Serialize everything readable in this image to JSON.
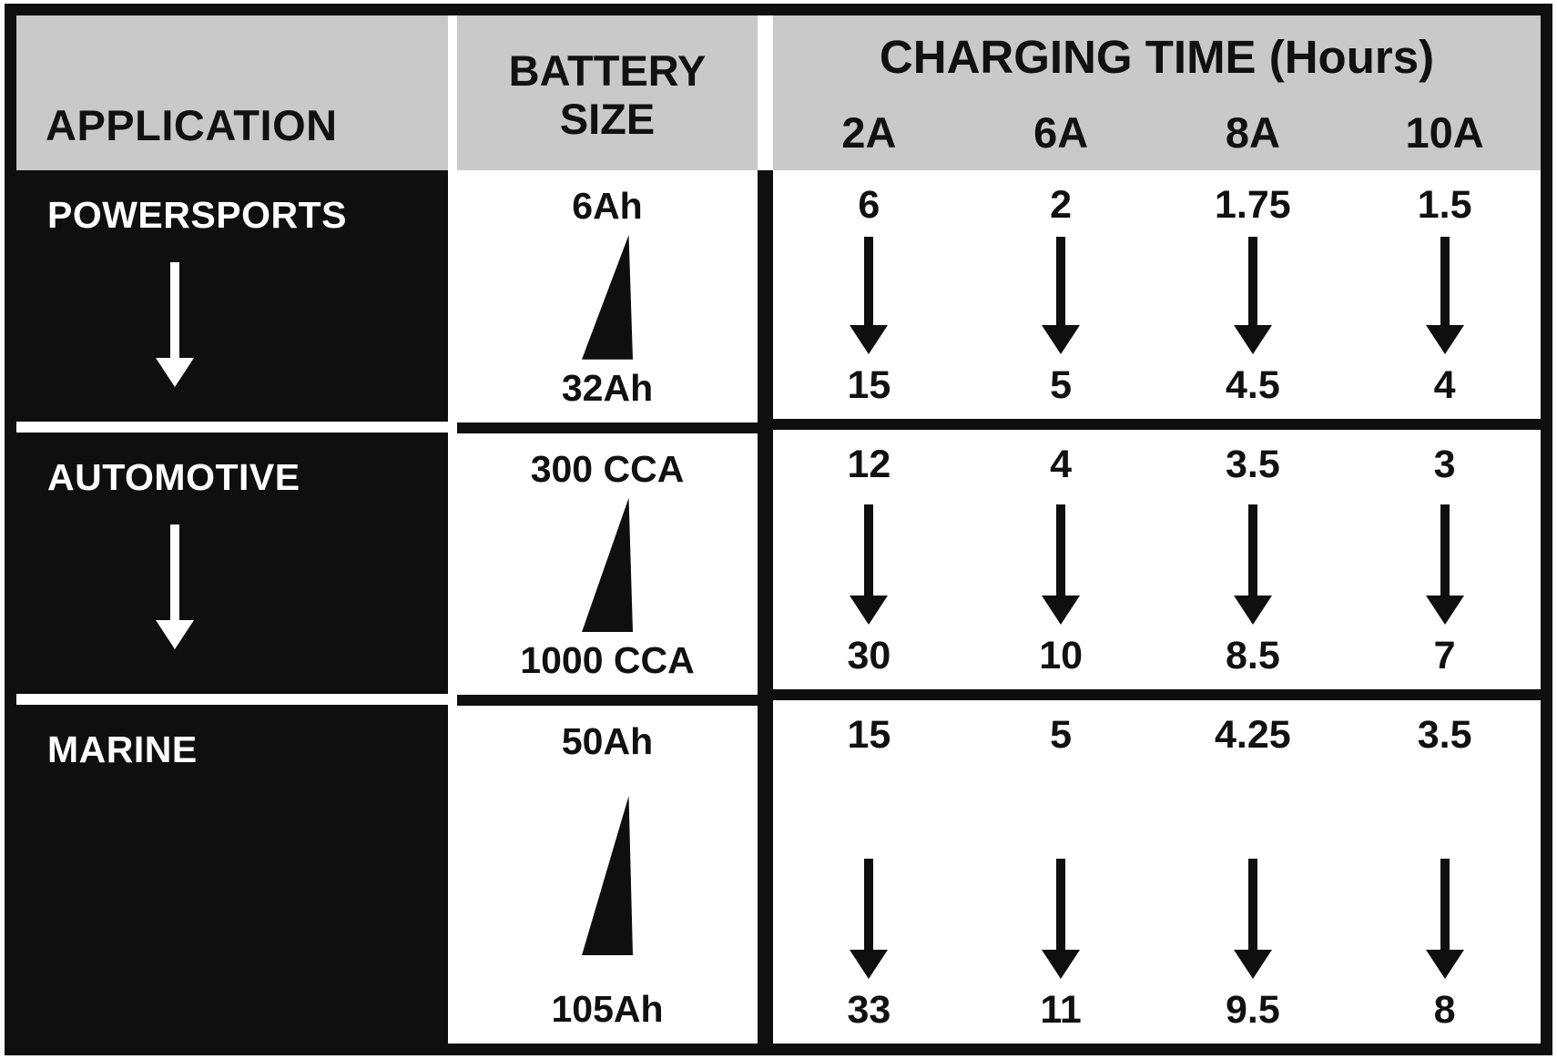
{
  "header": {
    "application_label": "APPLICATION",
    "battery_size_line1": "BATTERY",
    "battery_size_line2": "SIZE",
    "charging_time_label": "CHARGING TIME (Hours)",
    "amp_labels": [
      "2A",
      "6A",
      "8A",
      "10A"
    ]
  },
  "rows": [
    {
      "application": "POWERSPORTS",
      "battery_min": "6Ah",
      "battery_max": "32Ah",
      "times": [
        {
          "amp": "2A",
          "min": "6",
          "max": "15"
        },
        {
          "amp": "6A",
          "min": "2",
          "max": "5"
        },
        {
          "amp": "8A",
          "min": "1.75",
          "max": "4.5"
        },
        {
          "amp": "10A",
          "min": "1.5",
          "max": "4"
        }
      ]
    },
    {
      "application": "AUTOMOTIVE",
      "battery_min": "300 CCA",
      "battery_max": "1000 CCA",
      "times": [
        {
          "amp": "2A",
          "min": "12",
          "max": "30"
        },
        {
          "amp": "6A",
          "min": "4",
          "max": "10"
        },
        {
          "amp": "8A",
          "min": "3.5",
          "max": "8.5"
        },
        {
          "amp": "10A",
          "min": "3",
          "max": "7"
        }
      ]
    },
    {
      "application": "MARINE",
      "battery_min": "50Ah",
      "battery_max": "105Ah",
      "times": [
        {
          "amp": "2A",
          "min": "15",
          "max": "33"
        },
        {
          "amp": "6A",
          "min": "5",
          "max": "11"
        },
        {
          "amp": "8A",
          "min": "4.25",
          "max": "9.5"
        },
        {
          "amp": "10A",
          "min": "3.5",
          "max": "8"
        }
      ]
    }
  ],
  "colors": {
    "header_gray": "#c9c9c9",
    "panel_black": "#0f0f0f",
    "white": "#ffffff"
  },
  "chart_data": {
    "type": "table",
    "title": "CHARGING TIME (Hours)",
    "columns": [
      "APPLICATION",
      "BATTERY SIZE min",
      "BATTERY SIZE max",
      "2A min",
      "2A max",
      "6A min",
      "6A max",
      "8A min",
      "8A max",
      "10A min",
      "10A max"
    ],
    "rows": [
      [
        "POWERSPORTS",
        "6Ah",
        "32Ah",
        6,
        15,
        2,
        5,
        1.75,
        4.5,
        1.5,
        4
      ],
      [
        "AUTOMOTIVE",
        "300 CCA",
        "1000 CCA",
        12,
        30,
        4,
        10,
        3.5,
        8.5,
        3,
        7
      ],
      [
        "MARINE",
        "50Ah",
        "105Ah",
        15,
        33,
        5,
        11,
        4.25,
        9.5,
        3.5,
        8
      ]
    ],
    "notes": "Arrows indicate charging time range from smallest battery size (top value) to largest battery size (bottom value) for each charge rate."
  }
}
